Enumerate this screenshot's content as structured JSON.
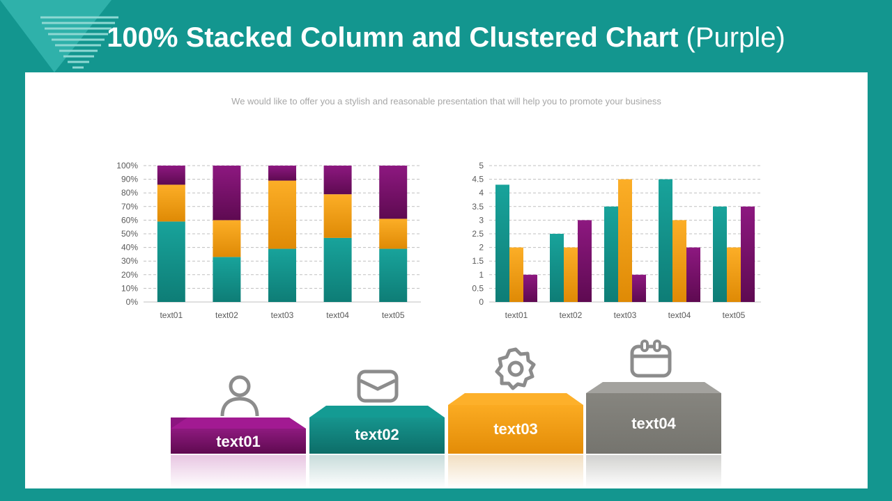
{
  "header": {
    "title_bold": "100% Stacked Column and Clustered Chart",
    "title_light": "(Purple)"
  },
  "subtitle": "We would like to offer you a stylish and reasonable presentation that will help you to promote your business",
  "colors": {
    "teal": "#14918b",
    "orange": "#f5a21b",
    "purple": "#7a1068",
    "gray": "#7f7f7a"
  },
  "chart_data": [
    {
      "type": "bar",
      "stacked": "percent",
      "categories": [
        "text01",
        "text02",
        "text03",
        "text04",
        "text05"
      ],
      "series": [
        {
          "color": "teal",
          "values": [
            59,
            33,
            39,
            47,
            39
          ]
        },
        {
          "color": "orange",
          "values": [
            27,
            27,
            50,
            32,
            22
          ]
        },
        {
          "color": "purple",
          "values": [
            14,
            40,
            11,
            21,
            39
          ]
        }
      ],
      "ylim": [
        0,
        100
      ],
      "yticks": [
        "0%",
        "10%",
        "20%",
        "30%",
        "40%",
        "50%",
        "60%",
        "70%",
        "80%",
        "90%",
        "100%"
      ],
      "grid": true
    },
    {
      "type": "bar",
      "stacked": "none",
      "categories": [
        "text01",
        "text02",
        "text03",
        "text04",
        "text05"
      ],
      "series": [
        {
          "color": "teal",
          "values": [
            4.3,
            2.5,
            3.5,
            4.5,
            3.5
          ]
        },
        {
          "color": "orange",
          "values": [
            2,
            2,
            4.5,
            3,
            2
          ]
        },
        {
          "color": "purple",
          "values": [
            1,
            3,
            1,
            2,
            3.5
          ]
        }
      ],
      "ylim": [
        0,
        5
      ],
      "yticks": [
        "0",
        "0.5",
        "1",
        "1.5",
        "2",
        "2.5",
        "3",
        "3.5",
        "4",
        "4.5",
        "5"
      ],
      "grid": true
    }
  ],
  "steps": [
    {
      "label": "text01",
      "icon": "user-icon",
      "color": "purple"
    },
    {
      "label": "text02",
      "icon": "envelope-icon",
      "color": "teal"
    },
    {
      "label": "text03",
      "icon": "gear-icon",
      "color": "orange"
    },
    {
      "label": "text04",
      "icon": "calendar-icon",
      "color": "gray"
    }
  ]
}
